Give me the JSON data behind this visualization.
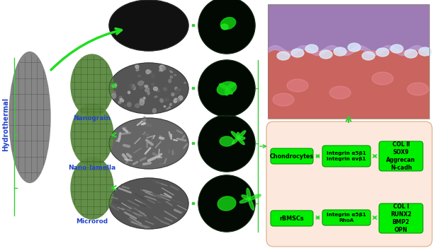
{
  "bg_color": "#ffffff",
  "panel_bg": "#fce8dc",
  "green_box_color": "#00ee00",
  "arrow_color": "#22dd22",
  "left_label_color": "#2244cc",
  "left_label": "Hydrothermal",
  "labels": [
    "Nanograin",
    "Nano-lamella",
    "Microrod"
  ],
  "label_color": "#2244cc",
  "chondrocytes_text": "Chondrocytes",
  "integrin1_text": "Integrin α5β1\nIntegrin αvβ1",
  "col2_text": "COL Ⅱ\nSOX9\nAggrecan\nN-cadh",
  "rbmscs_text": "rBMSCs",
  "integrin2_text": "Integrin α5β1\nRhoA",
  "col1_text": "COL I\nRUNX2\nBMP2\nOPN",
  "sem_ellipse_color": "#111111",
  "sem_ellipse_edge": "#333333",
  "fl_circle_bg": "#000800",
  "scaffold_green": "#5a8840",
  "scaffold_gray": "#808080",
  "scaffold_grid_green": "#3a6020",
  "scaffold_grid_gray": "#505050",
  "hist_purple": "#9977bb",
  "hist_red": "#cc3344",
  "hist_bg": "#e8d0c0",
  "sem_row1_gray": "#222222",
  "sem_row2_gray": "#aaaaaa",
  "sem_row3_gray": "#999999",
  "sem_row4_gray": "#777777",
  "fig_width": 6.14,
  "fig_height": 3.51,
  "dpi": 100
}
